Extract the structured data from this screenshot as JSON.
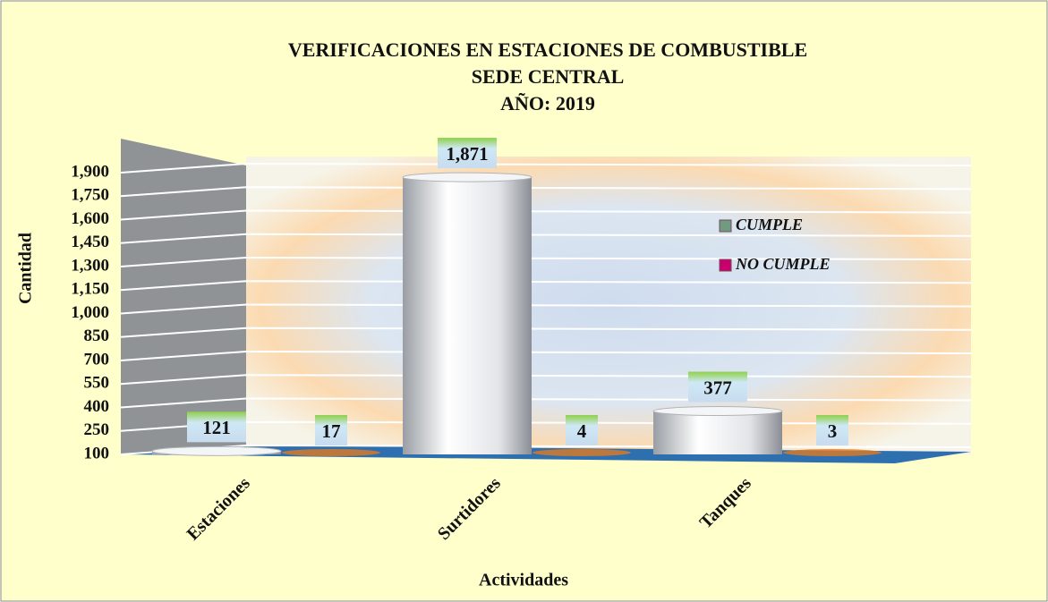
{
  "chart_data": {
    "type": "bar3d",
    "title": [
      "VERIFICACIONES EN ESTACIONES DE COMBUSTIBLE",
      "SEDE CENTRAL",
      "AÑO: 2019"
    ],
    "xlabel": "Actividades",
    "ylabel": "Cantidad",
    "categories": [
      "Estaciones",
      "Surtidores",
      "Tanques"
    ],
    "series": [
      {
        "name": "CUMPLE",
        "color": "#6f9c80",
        "values": [
          121,
          1871,
          377
        ],
        "value_labels": [
          "121",
          "1,871",
          "377"
        ]
      },
      {
        "name": "NO CUMPLE",
        "color": "#c8006e",
        "values": [
          17,
          4,
          3
        ],
        "value_labels": [
          "17",
          "4",
          "3"
        ]
      }
    ],
    "ylim": [
      100,
      1900
    ],
    "yticks": [
      100,
      250,
      400,
      550,
      700,
      850,
      {
        "value": 1000,
        "label": "1,000"
      },
      {
        "value": 1150,
        "label": "1,150"
      },
      {
        "value": 1300,
        "label": "1,300"
      },
      {
        "value": 1450,
        "label": "1,450"
      },
      {
        "value": 1600,
        "label": "1,600"
      },
      {
        "value": 1750,
        "label": "1,750"
      },
      {
        "value": 1900,
        "label": "1,900"
      }
    ],
    "grid": true,
    "legend": "right"
  }
}
